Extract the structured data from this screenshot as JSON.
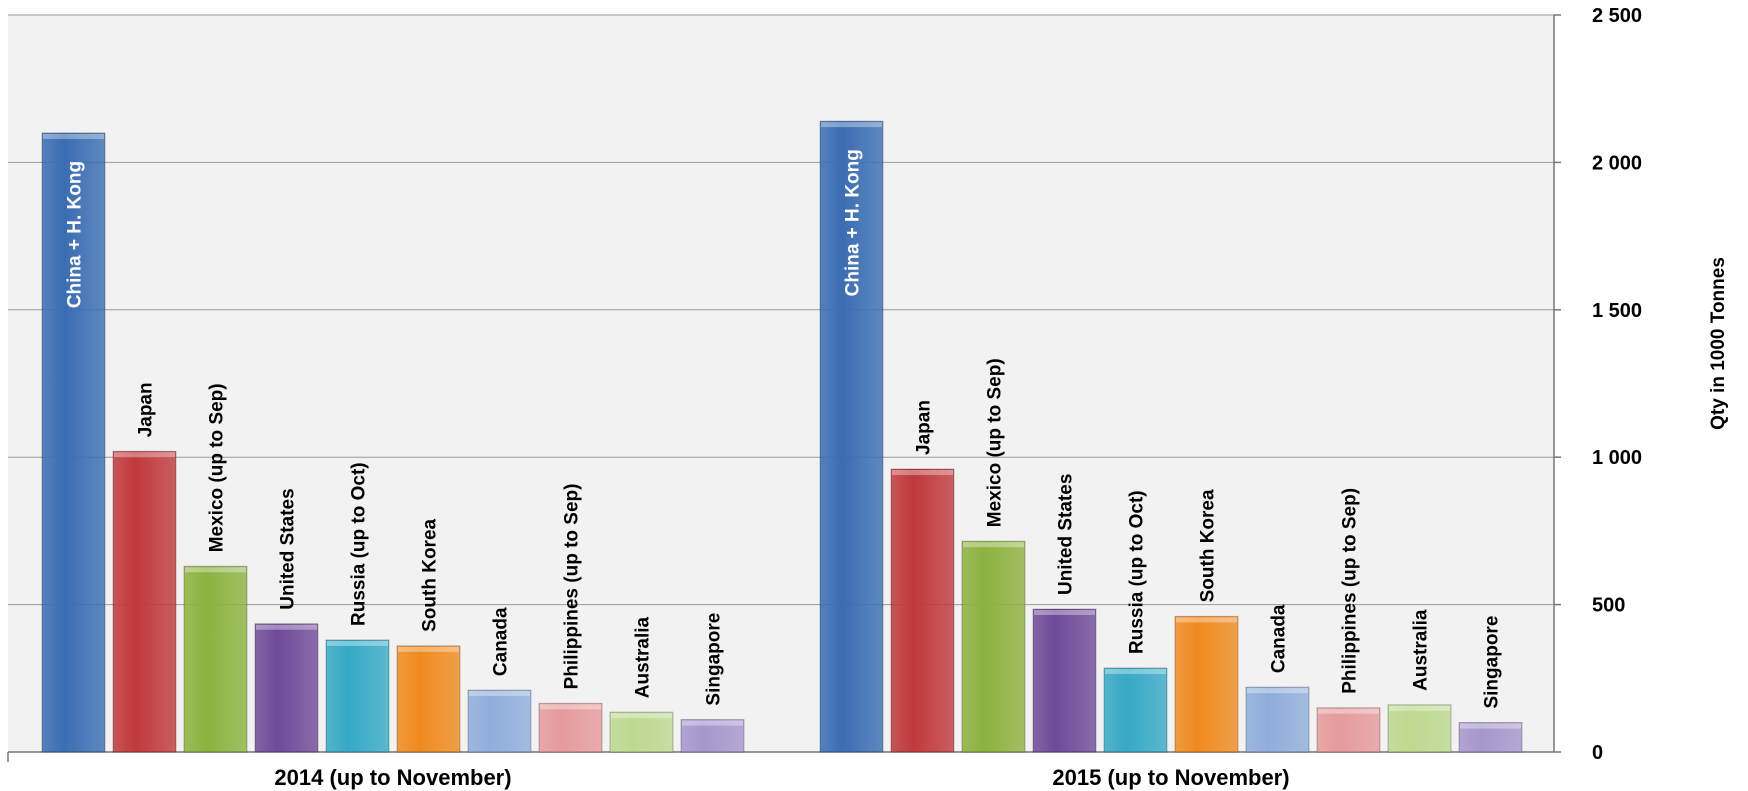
{
  "chart_data": {
    "type": "bar",
    "ylabel": "Qty in 1000 Tonnes",
    "ylim": [
      0,
      2500
    ],
    "y_ticks": [
      "0",
      "500",
      "1 000",
      "1 500",
      "2 000",
      "2 500"
    ],
    "y_tick_values": [
      0,
      500,
      1000,
      1500,
      2000,
      2500
    ],
    "y_axis_position": "right",
    "grid": true,
    "categories": [
      "China + H. Kong",
      "Japan",
      "Mexico (up to Sep)",
      "United States",
      "Russia (up to Oct)",
      "South Korea",
      "Canada",
      "Philippines (up to Sep)",
      "Australia",
      "Singapore"
    ],
    "groups": [
      {
        "label": "2014 (up to November)",
        "values": [
          2100,
          1020,
          630,
          435,
          380,
          360,
          210,
          165,
          135,
          110
        ]
      },
      {
        "label": "2015 (up to November)",
        "values": [
          2140,
          960,
          715,
          485,
          285,
          460,
          220,
          150,
          160,
          100
        ]
      }
    ],
    "colors": [
      "#3a6db3",
      "#c0393b",
      "#8cb23f",
      "#6f4a98",
      "#36a9c6",
      "#f08a1f",
      "#8faedb",
      "#e69a9c",
      "#bcd98f",
      "#a696cc"
    ],
    "label_colors": [
      "#ffffff",
      "#000000",
      "#000000",
      "#000000",
      "#000000",
      "#000000",
      "#000000",
      "#000000",
      "#000000",
      "#000000"
    ]
  }
}
